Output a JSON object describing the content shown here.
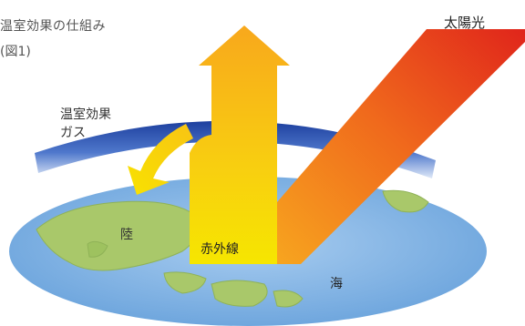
{
  "title": "温室効果の仕組み",
  "subtitle": "(図1)",
  "labels": {
    "greenhouse_gas_line1": "温室効果",
    "greenhouse_gas_line2": "ガス",
    "sunlight": "太陽光",
    "land": "陸",
    "infrared": "赤外線",
    "sea": "海"
  },
  "colors": {
    "sunlight_start": "#f7a020",
    "sunlight_end": "#e02418",
    "infrared_top": "#f9b21c",
    "infrared_bottom": "#f7e400",
    "gas_band": "#2a4fb0",
    "ocean": "#7fb0e0",
    "land": "#a8c96a"
  }
}
